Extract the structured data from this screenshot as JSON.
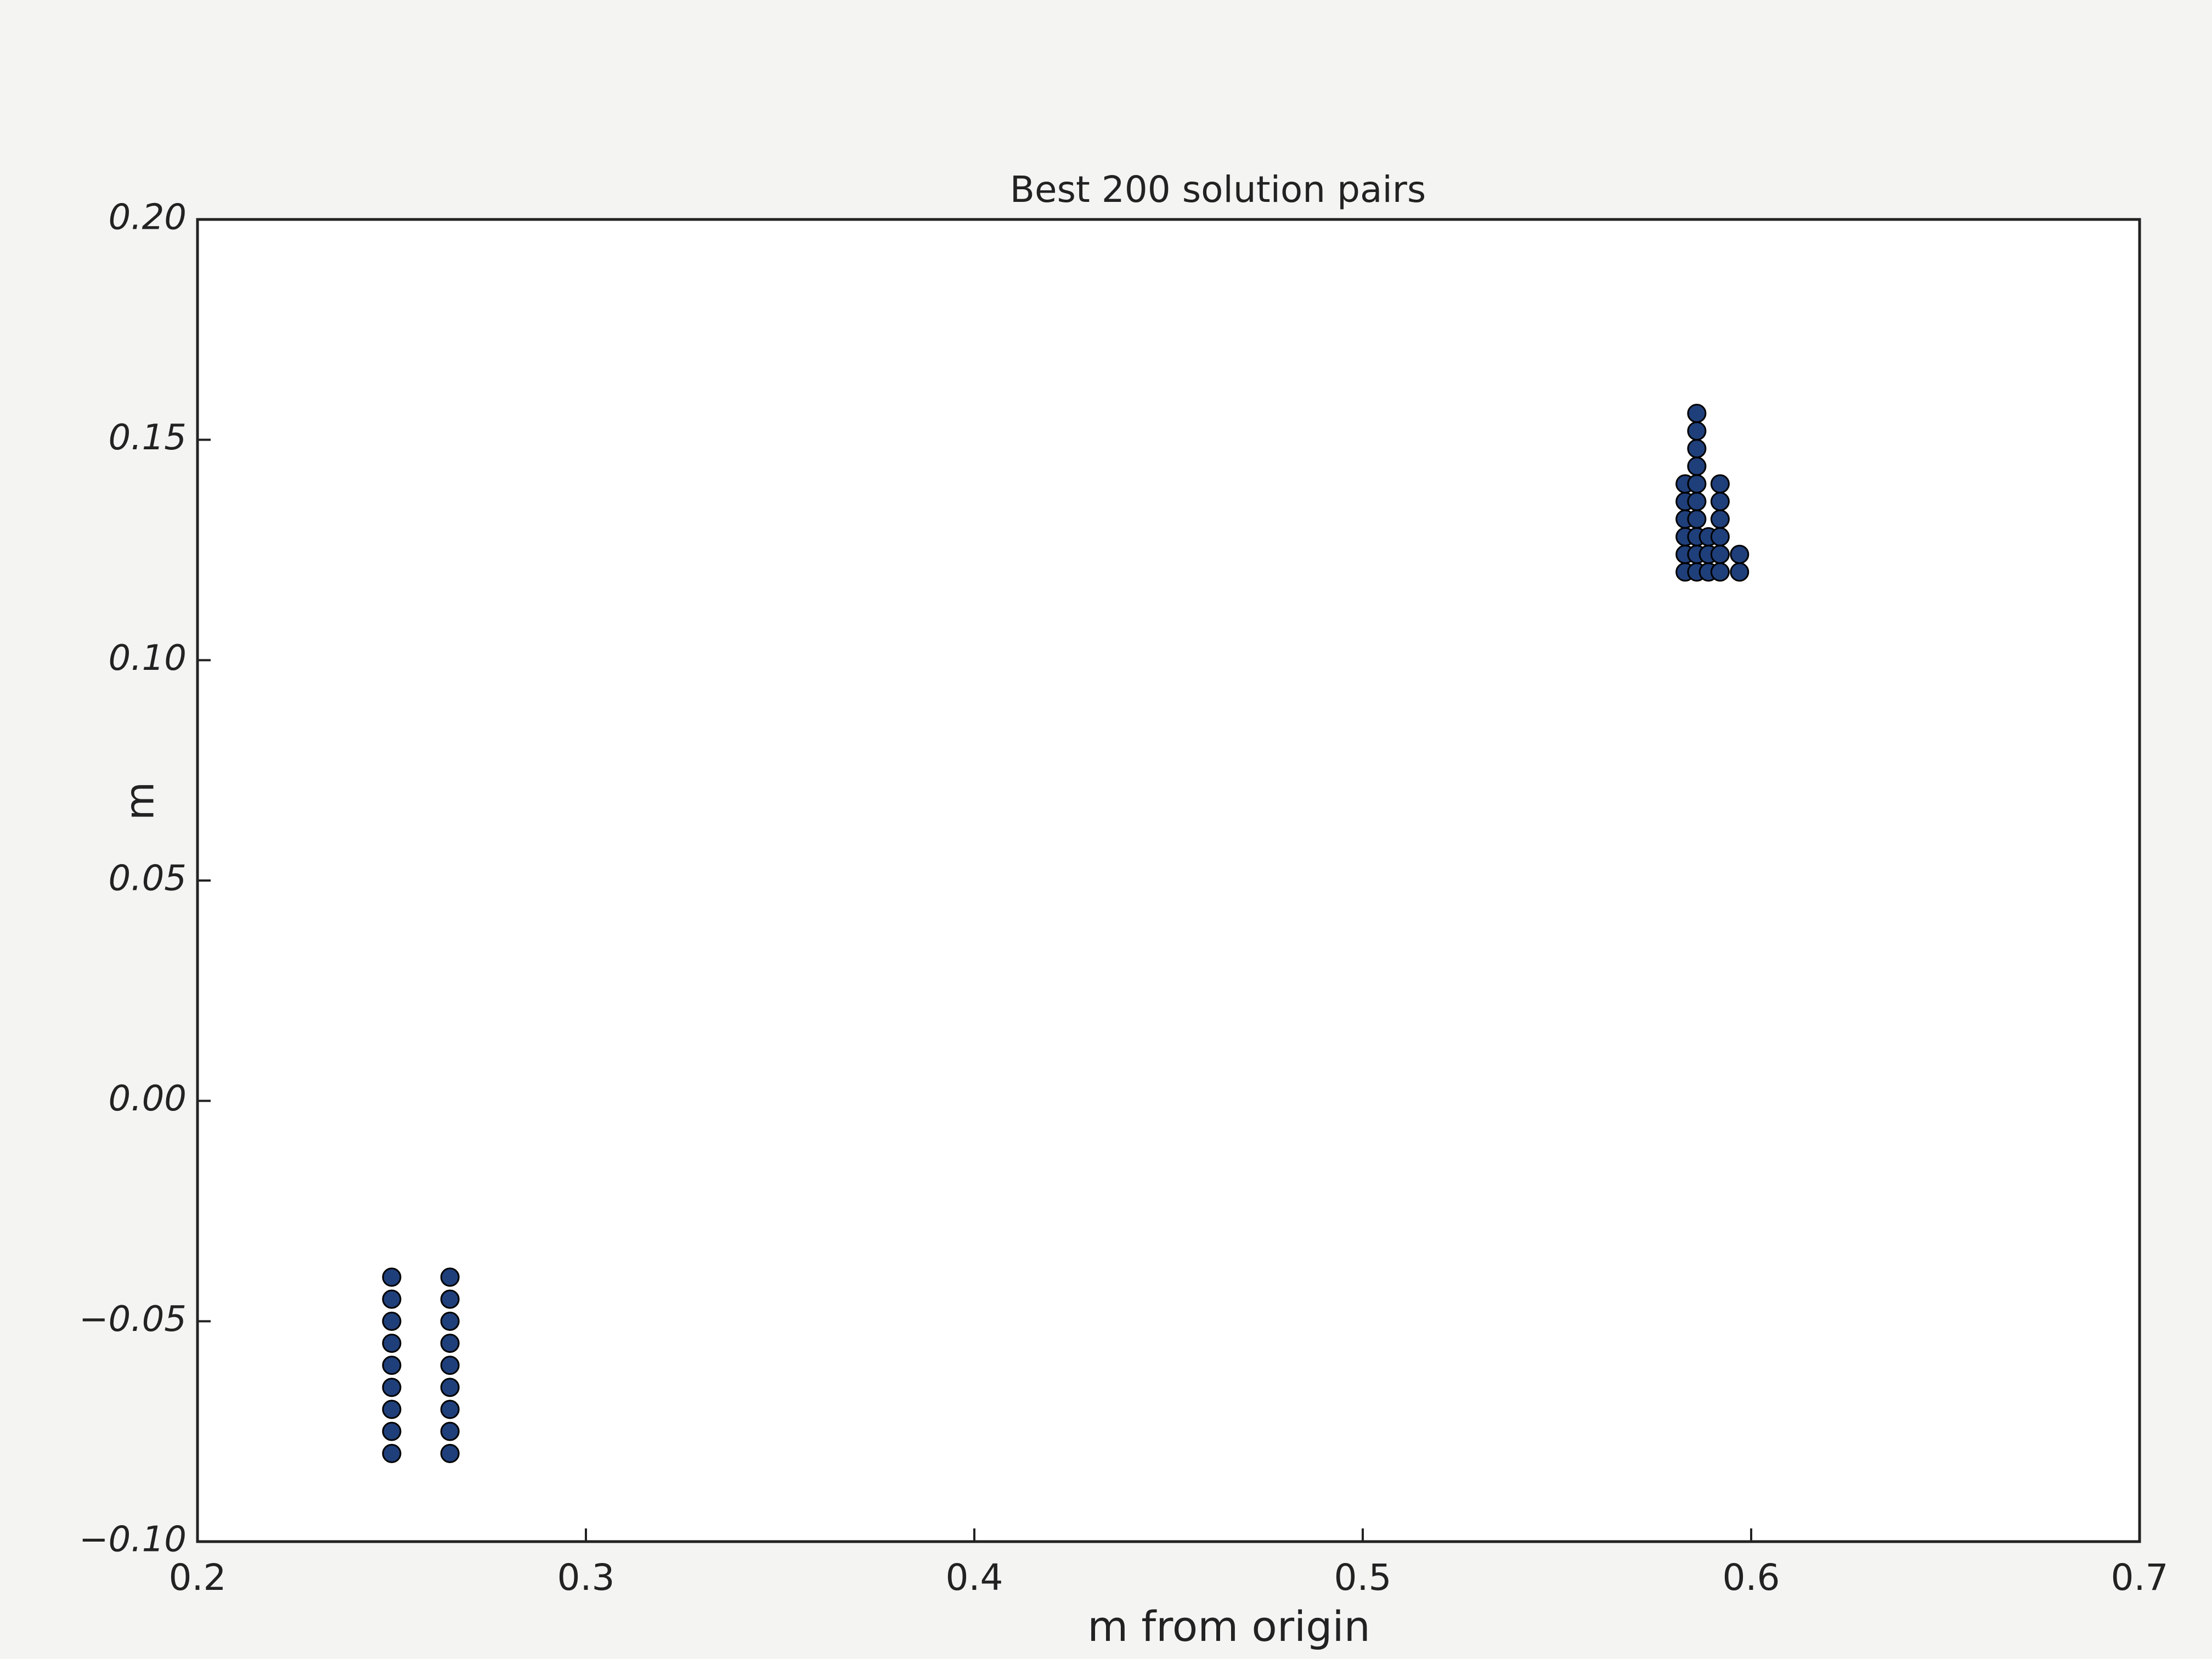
{
  "chart_data": {
    "type": "scatter",
    "title": "Best 200 solution pairs",
    "x_label": "m from origin",
    "y_label": "m",
    "x": [
      0.25,
      0.25,
      0.25,
      0.25,
      0.25,
      0.25,
      0.25,
      0.25,
      0.25,
      0.265,
      0.265,
      0.265,
      0.265,
      0.265,
      0.265,
      0.265,
      0.265,
      0.265,
      0.583,
      0.583,
      0.583,
      0.583,
      0.583,
      0.583,
      0.586,
      0.586,
      0.586,
      0.586,
      0.586,
      0.586,
      0.586,
      0.586,
      0.586,
      0.586,
      0.589,
      0.589,
      0.589,
      0.592,
      0.592,
      0.592,
      0.592,
      0.592,
      0.592,
      0.597,
      0.597
    ],
    "values": [
      -0.08,
      -0.075,
      -0.07,
      -0.065,
      -0.06,
      -0.055,
      -0.05,
      -0.045,
      -0.04,
      -0.08,
      -0.075,
      -0.07,
      -0.065,
      -0.06,
      -0.055,
      -0.05,
      -0.045,
      -0.04,
      0.12,
      0.124,
      0.128,
      0.132,
      0.136,
      0.14,
      0.12,
      0.124,
      0.128,
      0.132,
      0.136,
      0.14,
      0.144,
      0.148,
      0.152,
      0.156,
      0.12,
      0.124,
      0.128,
      0.12,
      0.124,
      0.128,
      0.132,
      0.136,
      0.14,
      0.12,
      0.124
    ],
    "color": "#1f3f7a",
    "xlim": [
      0.2,
      0.7
    ],
    "ylim": [
      -0.1,
      0.2
    ],
    "xticks": [
      0.2,
      0.3,
      0.4,
      0.5,
      0.6,
      0.7
    ],
    "yticks": [
      {
        "value": -0.1,
        "label": "−0.10"
      },
      {
        "value": -0.05,
        "label": "−0.05"
      },
      {
        "value": 0,
        "label": "0.00"
      },
      {
        "value": 0.05,
        "label": "0.05"
      },
      {
        "value": 0.1,
        "label": "0.10"
      },
      {
        "value": 0.15,
        "label": "0.15"
      },
      {
        "value": 0.2,
        "label": "0.20"
      }
    ]
  }
}
